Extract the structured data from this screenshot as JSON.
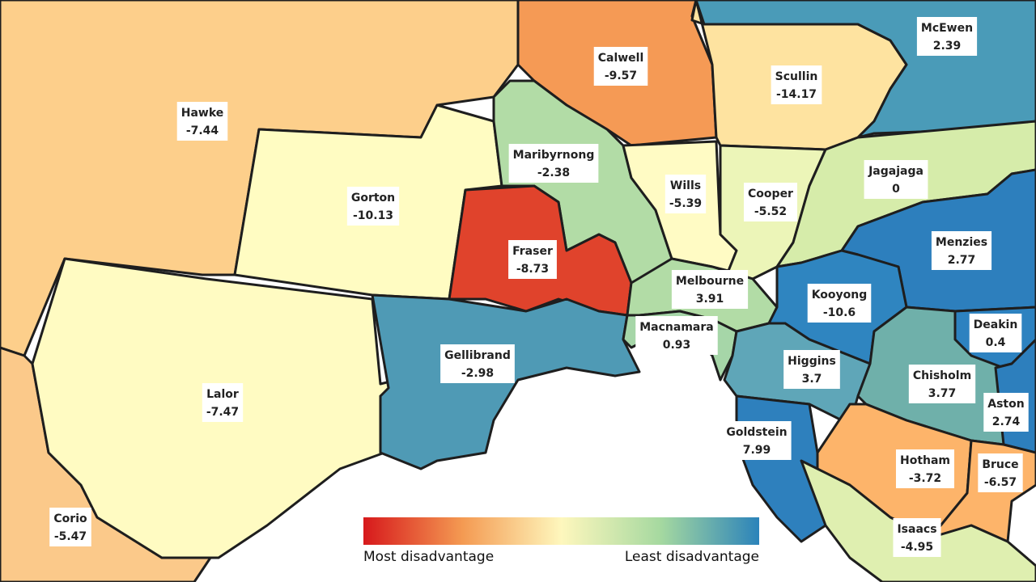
{
  "regions": [
    {
      "name": "Hawke",
      "value": -7.44,
      "color": "#fdcf8b"
    },
    {
      "name": "Corio",
      "value": -5.47,
      "color": "#fbc98a"
    },
    {
      "name": "Lalor",
      "value": -7.47,
      "color": "#fffbc2"
    },
    {
      "name": "Gorton",
      "value": -10.13,
      "color": "#fffcc2"
    },
    {
      "name": "Calwell",
      "value": -9.57,
      "color": "#f59a55"
    },
    {
      "name": "Maribyrnong",
      "value": -2.38,
      "color": "#b2dca6"
    },
    {
      "name": "Fraser",
      "value": -8.73,
      "color": "#e0432c"
    },
    {
      "name": "Gellibrand",
      "value": -2.98,
      "color": "#4f9ab5"
    },
    {
      "name": "Wills",
      "value": -5.39,
      "color": "#fffbc4"
    },
    {
      "name": "Scullin",
      "value": -14.17,
      "color": "#fee3a0"
    },
    {
      "name": "McEwen",
      "value": 2.39,
      "color": "#4a9bb8"
    },
    {
      "name": "Cooper",
      "value": -5.52,
      "color": "#ecf5b8"
    },
    {
      "name": "Jagajaga",
      "value": 0,
      "color": "#d6ecaa"
    },
    {
      "name": "Menzies",
      "value": 2.77,
      "color": "#2d7fbd"
    },
    {
      "name": "Melbourne",
      "value": 3.91,
      "color": "#b2dca6"
    },
    {
      "name": "Kooyong",
      "value": -10.6,
      "color": "#2f85c0"
    },
    {
      "name": "Macnamara",
      "value": 0.93,
      "color": "#a6d6a8"
    },
    {
      "name": "Deakin",
      "value": 0.4,
      "color": "#2d82c0"
    },
    {
      "name": "Higgins",
      "value": 3.7,
      "color": "#5fa6b8"
    },
    {
      "name": "Chisholm",
      "value": 3.77,
      "color": "#6fb0aa"
    },
    {
      "name": "Aston",
      "value": 2.74,
      "color": "#2d7fbd"
    },
    {
      "name": "Goldstein",
      "value": 7.99,
      "color": "#2e80bd"
    },
    {
      "name": "Hotham",
      "value": -3.72,
      "color": "#fdb46a"
    },
    {
      "name": "Bruce",
      "value": -6.57,
      "color": "#fdb46a"
    },
    {
      "name": "Isaacs",
      "value": -4.95,
      "color": "#dfefb0"
    }
  ],
  "legend": {
    "low_label": "Most disadvantage",
    "high_label": "Least disadvantage",
    "colors": [
      "#d7191c",
      "#f49a52",
      "#fef7bd",
      "#a6d9a0",
      "#2b83ba"
    ]
  }
}
